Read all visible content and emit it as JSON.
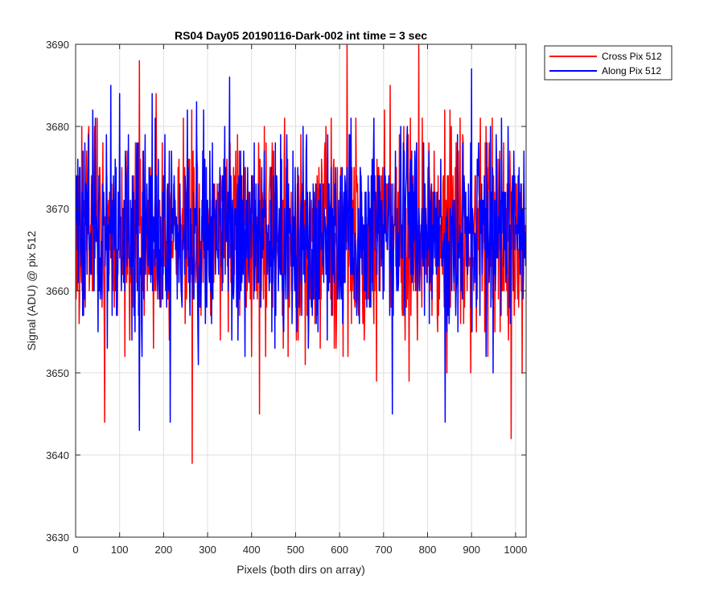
{
  "chart_data": {
    "type": "line",
    "title": "RS04 Day05 20190116-Dark-002 int time = 3 sec",
    "xlabel": "Pixels (both dirs on array)",
    "ylabel": "Signal (ADU) @ pix 512",
    "xlim": [
      0,
      1024
    ],
    "ylim": [
      3630,
      3690
    ],
    "xticks": [
      0,
      100,
      200,
      300,
      400,
      500,
      600,
      700,
      800,
      900,
      1000
    ],
    "yticks": [
      3630,
      3640,
      3650,
      3660,
      3670,
      3680,
      3690
    ],
    "grid": true,
    "legend_position": "outside top-right",
    "series": [
      {
        "name": "Cross Pix 512",
        "color": "#ff0000",
        "mean": 3667,
        "spread": 6,
        "n_points": 1024,
        "notable_points": [
          {
            "x": 66,
            "y": 3644
          },
          {
            "x": 145,
            "y": 3688
          },
          {
            "x": 265,
            "y": 3639
          },
          {
            "x": 418,
            "y": 3645
          },
          {
            "x": 617,
            "y": 3690
          },
          {
            "x": 780,
            "y": 3690
          },
          {
            "x": 990,
            "y": 3642
          },
          {
            "x": 1015,
            "y": 3650
          }
        ]
      },
      {
        "name": "Along Pix 512",
        "color": "#0000ff",
        "mean": 3667,
        "spread": 6,
        "n_points": 1024,
        "notable_points": [
          {
            "x": 145,
            "y": 3643
          },
          {
            "x": 215,
            "y": 3644
          },
          {
            "x": 350,
            "y": 3645
          },
          {
            "x": 720,
            "y": 3645
          },
          {
            "x": 840,
            "y": 3644
          },
          {
            "x": 100,
            "y": 3684
          },
          {
            "x": 350,
            "y": 3686
          },
          {
            "x": 900,
            "y": 3687
          }
        ]
      }
    ]
  }
}
